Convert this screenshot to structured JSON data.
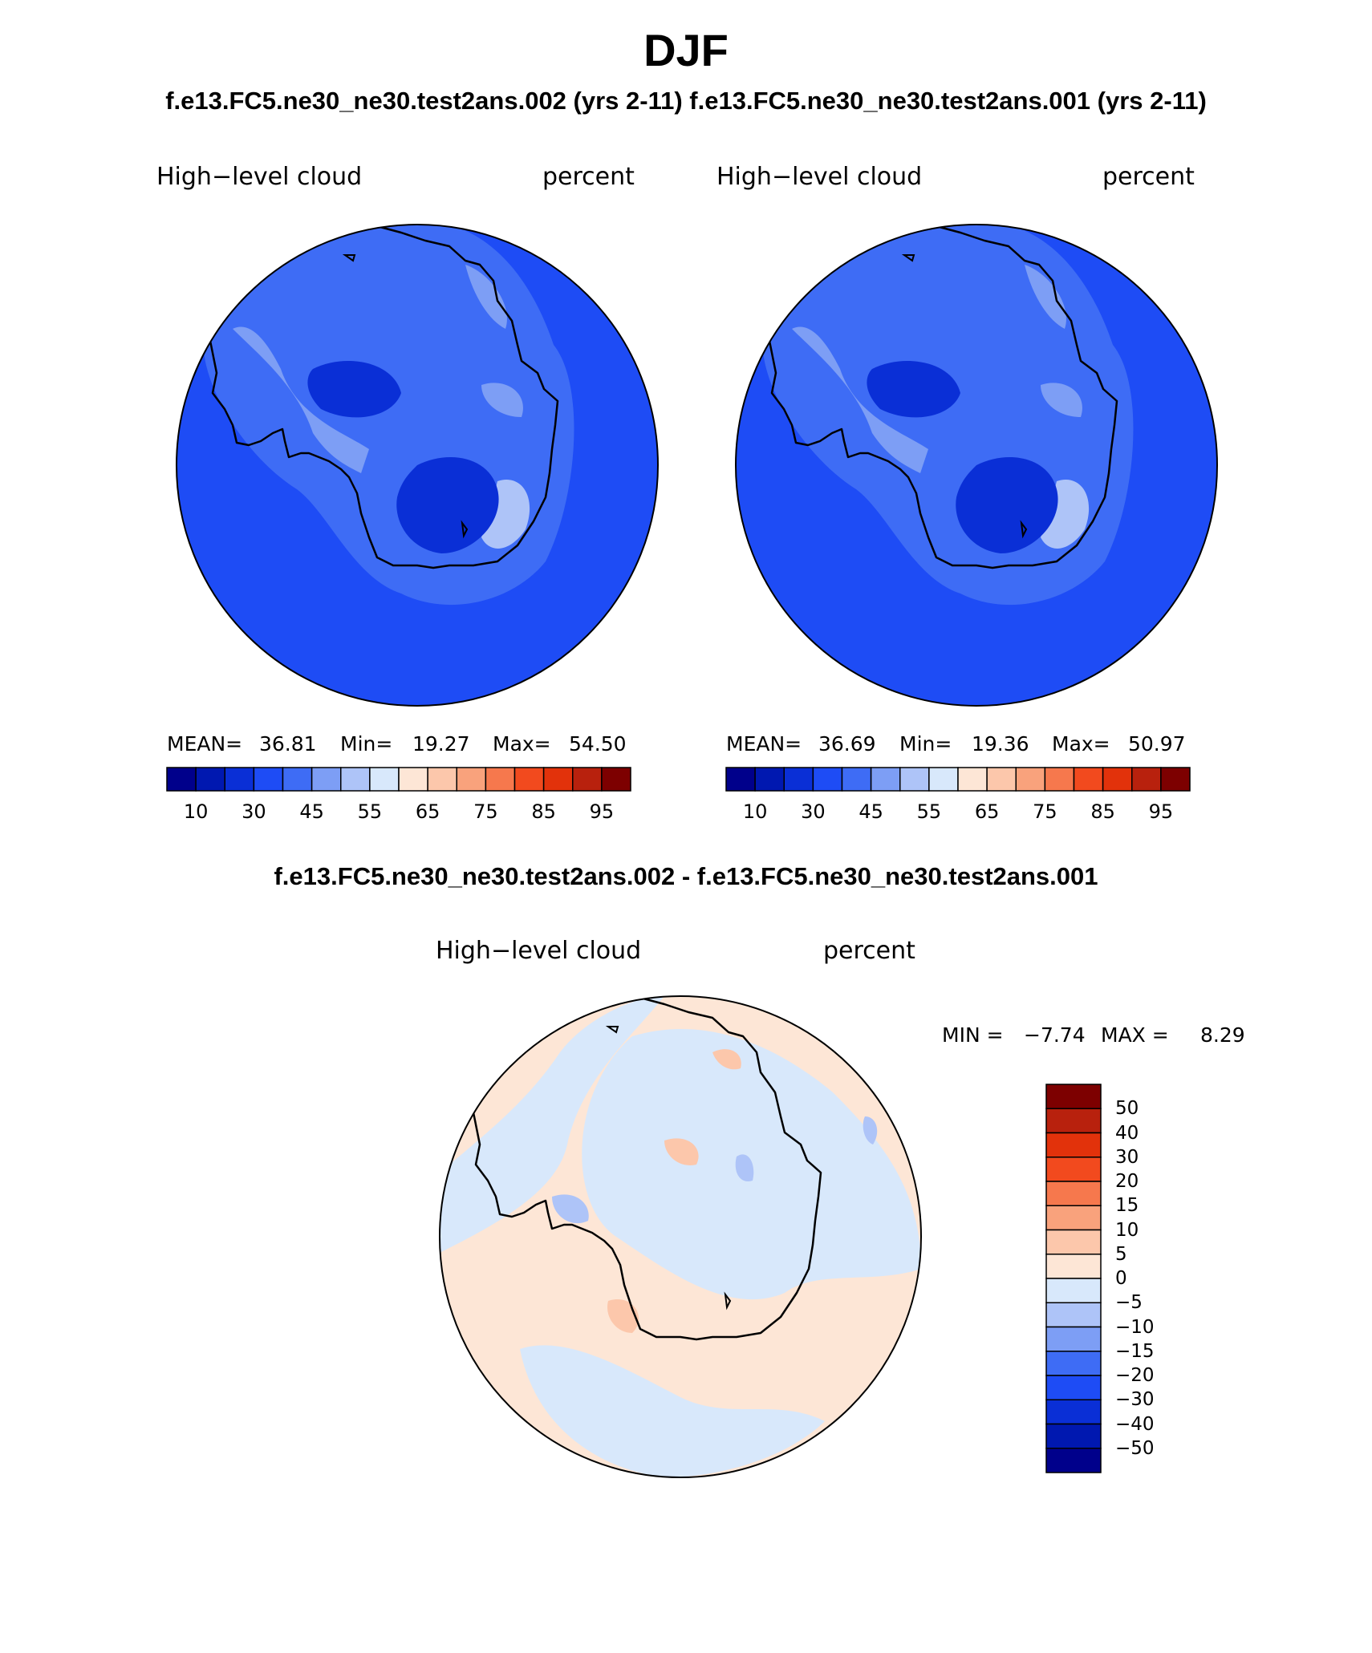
{
  "figure": {
    "season": "DJF",
    "cases_title": "f.e13.FC5.ne30_ne30.test2ans.002 (yrs 2-11) f.e13.FC5.ne30_ne30.test2ans.001 (yrs 2-11)",
    "diff_title": "f.e13.FC5.ne30_ne30.test2ans.002 - f.e13.FC5.ne30_ne30.test2ans.001"
  },
  "panels": [
    {
      "variable": "High−level cloud",
      "units": "percent",
      "mean_label": "MEAN=",
      "mean": "36.81",
      "min_label": "Min=",
      "min": "19.27",
      "max_label": "Max=",
      "max": "54.50",
      "colorbar_labels": [
        "10",
        "30",
        "45",
        "55",
        "65",
        "75",
        "85",
        "95"
      ]
    },
    {
      "variable": "High−level cloud",
      "units": "percent",
      "mean_label": "MEAN=",
      "mean": "36.69",
      "min_label": "Min=",
      "min": "19.36",
      "max_label": "Max=",
      "max": "50.97",
      "colorbar_labels": [
        "10",
        "30",
        "45",
        "55",
        "65",
        "75",
        "85",
        "95"
      ]
    }
  ],
  "diff_panel": {
    "variable": "High−level cloud",
    "units": "percent",
    "min_label": "MIN =",
    "min": "−7.74",
    "max_label": "MAX =",
    "max": "8.29",
    "colorbar_labels": [
      "50",
      "40",
      "30",
      "20",
      "15",
      "10",
      "5",
      "0",
      "−5",
      "−10",
      "−15",
      "−20",
      "−30",
      "−40",
      "−50"
    ]
  },
  "colors": {
    "abs_scale": [
      "#00008b",
      "#0018b0",
      "#0a2fd6",
      "#1e4cf5",
      "#3e6cf5",
      "#7d9ef5",
      "#aec4f8",
      "#d8e8fb",
      "#fde6d6",
      "#fcc7ab",
      "#f9a27c",
      "#f6784d",
      "#f24a1e",
      "#e2320b",
      "#b8210d",
      "#7d0000"
    ],
    "diff_scale": [
      "#00008b",
      "#0018b0",
      "#0a2fd6",
      "#1e4cf5",
      "#3e6cf5",
      "#7d9ef5",
      "#aec4f8",
      "#d8e8fb",
      "#fde6d6",
      "#fcc7ab",
      "#f9a27c",
      "#f6784d",
      "#f24a1e",
      "#e2320b",
      "#b8210d",
      "#7d0000"
    ],
    "land_outline": "#000000"
  }
}
